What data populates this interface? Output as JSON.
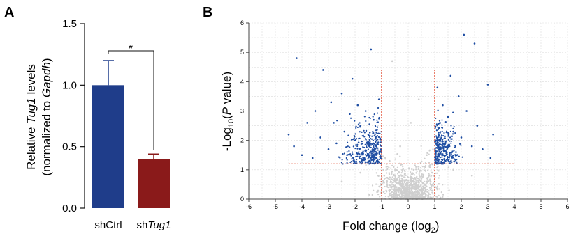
{
  "panels": {
    "a": {
      "letter": "A"
    },
    "b": {
      "letter": "B"
    }
  },
  "chart_data": [
    {
      "type": "bar",
      "panel": "A",
      "categories": [
        "shCtrl",
        "shTug1"
      ],
      "category_parts": [
        {
          "plain": "shCtrl",
          "italic": ""
        },
        {
          "plain": "sh",
          "italic": "Tug1"
        }
      ],
      "values": [
        1.0,
        0.4
      ],
      "errors": [
        0.2,
        0.04
      ],
      "colors": [
        "#1f3d8a",
        "#8a1a1a"
      ],
      "ylim": [
        0,
        1.5
      ],
      "yticks": [
        "0.0",
        "0.5",
        "1.0",
        "1.5"
      ],
      "ylabel_line1": {
        "a": "Relative ",
        "b": "Tug1",
        "c": " levels"
      },
      "ylabel_line2": {
        "a": "(normalized to ",
        "b": "Gapdh",
        "c": ")"
      },
      "significance": "*"
    },
    {
      "type": "scatter",
      "panel": "B",
      "subtype": "volcano",
      "xlim": [
        -6,
        6
      ],
      "ylim": [
        0,
        6
      ],
      "xticks": [
        "-6",
        "-5",
        "-4",
        "-3",
        "-2",
        "-1",
        "0",
        "1",
        "2",
        "3",
        "4",
        "5",
        "6"
      ],
      "yticks": [
        "0",
        "1",
        "2",
        "3",
        "4",
        "5",
        "6"
      ],
      "xlabel": {
        "a": "Fold change (log",
        "sub": "2",
        "b": ")"
      },
      "ylabel": {
        "a": "-Log",
        "sub": "10",
        "b": "(",
        "it": "P",
        "c": " value)"
      },
      "grid": true,
      "thresholds": {
        "fold_change": [
          -1,
          1
        ],
        "neg_log10_p": 1.2
      },
      "colors": {
        "significant": "#1f4ea3",
        "background": "#cfcfcf",
        "threshold_line": "#e03c1f"
      },
      "series": [
        {
          "points": [
            [
              -4.5,
              2.2
            ],
            [
              -4.3,
              1.8
            ],
            [
              -4.2,
              4.8
            ],
            [
              -4.0,
              1.5
            ],
            [
              -3.8,
              2.6
            ],
            [
              -3.6,
              1.4
            ],
            [
              -3.5,
              3.0
            ],
            [
              -3.3,
              2.1
            ],
            [
              -3.2,
              4.4
            ],
            [
              -3.0,
              1.7
            ],
            [
              -2.9,
              3.3
            ],
            [
              -2.8,
              2.6
            ],
            [
              -2.7,
              1.9
            ],
            [
              -2.5,
              3.6
            ],
            [
              -2.4,
              2.3
            ],
            [
              -2.3,
              1.5
            ],
            [
              -2.2,
              2.9
            ],
            [
              -2.1,
              4.1
            ],
            [
              -2.0,
              2.0
            ],
            [
              -1.9,
              3.2
            ],
            [
              -1.8,
              2.5
            ],
            [
              -1.7,
              1.6
            ],
            [
              -1.6,
              3.0
            ],
            [
              -1.5,
              2.2
            ],
            [
              -1.4,
              5.1
            ],
            [
              -1.3,
              2.7
            ],
            [
              -1.2,
              1.8
            ],
            [
              -1.1,
              3.4
            ],
            [
              -1.05,
              1.4
            ],
            [
              1.05,
              2.0
            ],
            [
              1.1,
              3.8
            ],
            [
              1.15,
              1.5
            ],
            [
              1.2,
              2.6
            ],
            [
              1.3,
              3.2
            ],
            [
              1.4,
              1.9
            ],
            [
              1.5,
              2.8
            ],
            [
              1.6,
              4.2
            ],
            [
              1.7,
              2.3
            ],
            [
              1.8,
              1.6
            ],
            [
              1.9,
              3.5
            ],
            [
              2.0,
              2.1
            ],
            [
              2.2,
              3.0
            ],
            [
              2.4,
              1.8
            ],
            [
              2.5,
              5.3
            ],
            [
              2.6,
              2.5
            ],
            [
              2.8,
              1.7
            ],
            [
              3.0,
              3.9
            ],
            [
              3.1,
              1.4
            ],
            [
              3.2,
              2.2
            ],
            [
              2.1,
              5.6
            ]
          ]
        },
        {
          "points": [
            [
              -0.9,
              0.8
            ],
            [
              -0.7,
              1.3
            ],
            [
              -0.5,
              0.6
            ],
            [
              -0.3,
              1.8
            ],
            [
              -0.1,
              0.4
            ],
            [
              0.1,
              2.6
            ],
            [
              0.3,
              1.1
            ],
            [
              0.5,
              0.7
            ],
            [
              0.7,
              1.5
            ],
            [
              0.9,
              0.9
            ],
            [
              -0.6,
              4.7
            ],
            [
              0.4,
              3.4
            ],
            [
              -2.5,
              0.6
            ],
            [
              2.4,
              0.8
            ],
            [
              -1.8,
              0.9
            ],
            [
              1.7,
              1.0
            ]
          ]
        }
      ]
    }
  ]
}
